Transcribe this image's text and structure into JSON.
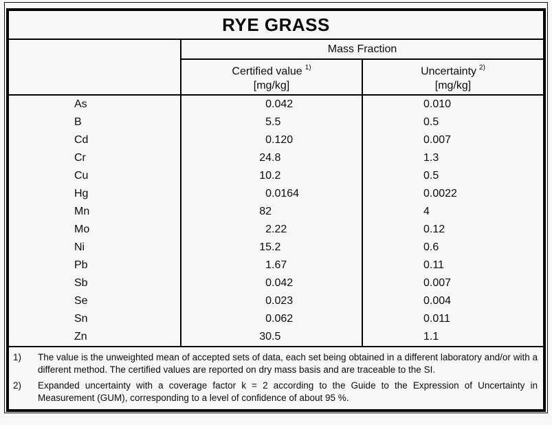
{
  "title": "RYE GRASS",
  "table": {
    "group_header": "Mass Fraction",
    "columns": {
      "certified": {
        "label": "Certified value",
        "sup": "1)",
        "unit": "[mg/kg]"
      },
      "uncertainty": {
        "label": "Uncertainty",
        "sup": "2)",
        "unit": "[mg/kg]"
      }
    },
    "rows": [
      {
        "element": "As",
        "certified": "0.042",
        "uncertainty": "0.010"
      },
      {
        "element": "B",
        "certified": "5.5",
        "uncertainty": "0.5"
      },
      {
        "element": "Cd",
        "certified": "0.120",
        "uncertainty": "0.007"
      },
      {
        "element": "Cr",
        "certified": "24.8",
        "uncertainty": "1.3"
      },
      {
        "element": "Cu",
        "certified": "10.2",
        "uncertainty": "0.5"
      },
      {
        "element": "Hg",
        "certified": "0.0164",
        "uncertainty": "0.0022"
      },
      {
        "element": "Mn",
        "certified": "82",
        "uncertainty": "4"
      },
      {
        "element": "Mo",
        "certified": "2.22",
        "uncertainty": "0.12"
      },
      {
        "element": "Ni",
        "certified": "15.2",
        "uncertainty": "0.6"
      },
      {
        "element": "Pb",
        "certified": "1.67",
        "uncertainty": "0.11"
      },
      {
        "element": "Sb",
        "certified": "0.042",
        "uncertainty": "0.007"
      },
      {
        "element": "Se",
        "certified": "0.023",
        "uncertainty": "0.004"
      },
      {
        "element": "Sn",
        "certified": "0.062",
        "uncertainty": "0.011"
      },
      {
        "element": "Zn",
        "certified": "30.5",
        "uncertainty": "1.1"
      }
    ]
  },
  "footnotes": [
    {
      "marker": "1)",
      "text": "The value is the unweighted mean of accepted sets of data, each set being obtained in a different laboratory and/or with a different method. The certified values are reported on dry mass basis and are traceable to the SI."
    },
    {
      "marker": "2)",
      "text": "Expanded uncertainty with a coverage factor k = 2 according to the Guide to the Expression of Uncertainty in Measurement (GUM), corresponding to a level of confidence of about 95 %."
    }
  ],
  "colors": {
    "background": "#f7f7f5",
    "border": "#000000",
    "text": "#0b0b0b"
  }
}
